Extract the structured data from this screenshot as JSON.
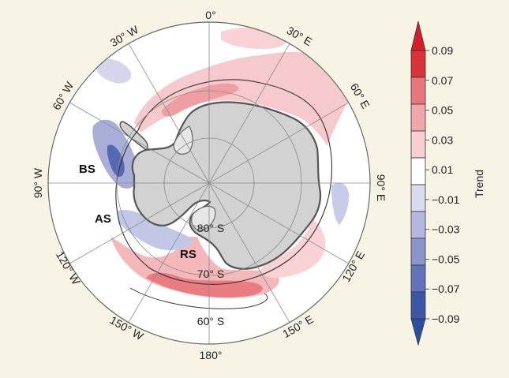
{
  "map": {
    "projection": "south-polar-stereographic",
    "longitude_labels": [
      {
        "deg": 0,
        "text": "0°"
      },
      {
        "deg": 30,
        "text": "30° E"
      },
      {
        "deg": 60,
        "text": "60° E"
      },
      {
        "deg": 90,
        "text": "90° E"
      },
      {
        "deg": 120,
        "text": "120° E"
      },
      {
        "deg": 150,
        "text": "150° E"
      },
      {
        "deg": 180,
        "text": "180°"
      },
      {
        "deg": -150,
        "text": "150° W"
      },
      {
        "deg": -120,
        "text": "120° W"
      },
      {
        "deg": -90,
        "text": "90° W"
      },
      {
        "deg": -60,
        "text": "60° W"
      },
      {
        "deg": -30,
        "text": "30° W"
      }
    ],
    "latitude_labels": [
      {
        "text": "80° S"
      },
      {
        "text": "70° S"
      },
      {
        "text": "60° S"
      }
    ],
    "regions": [
      {
        "text": "BS"
      },
      {
        "text": "AS"
      },
      {
        "text": "RS"
      }
    ],
    "colors": {
      "land": "#d2d2d2",
      "ocean": "#ffffff",
      "positive_light": "#f7cccf",
      "positive_mid": "#ef9fa2",
      "positive_strong": "#e06b70",
      "negative_light": "#d5d6ec",
      "negative_mid": "#a7acd7",
      "negative_strong": "#5a6cb8"
    }
  },
  "colorbar": {
    "title": "Trend",
    "ticks": [
      "0.09",
      "0.07",
      "0.05",
      "0.03",
      "0.01",
      "−0.01",
      "−0.03",
      "−0.05",
      "−0.07",
      "−0.09"
    ],
    "colors": [
      "#d9323a",
      "#e8777b",
      "#f1a7aa",
      "#f7cfd1",
      "#ffffff",
      "#d9dbee",
      "#b3b8de",
      "#8c94cc",
      "#6373bb",
      "#3e56a6"
    ],
    "extend_top_color": "#d81e2a",
    "extend_bottom_color": "#2c4fa0"
  }
}
